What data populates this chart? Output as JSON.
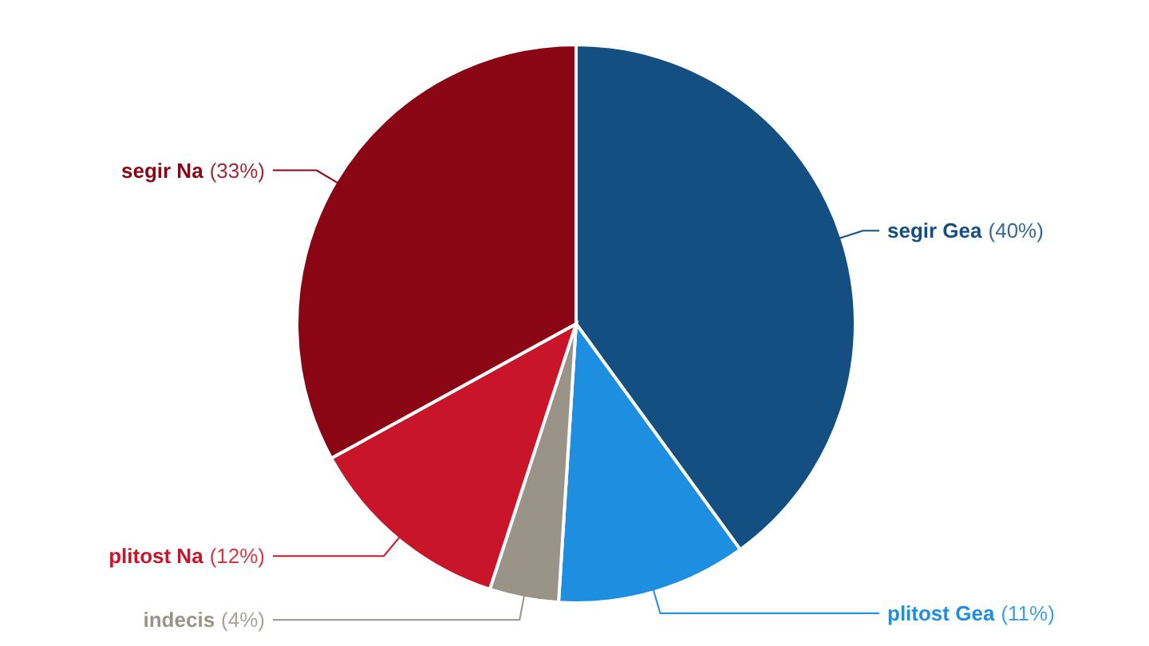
{
  "chart_data": {
    "type": "pie",
    "categories": [
      "segir Gea",
      "plitost Gea",
      "indecis",
      "plitost Na",
      "segir Na"
    ],
    "values": [
      40,
      11,
      4,
      12,
      33
    ],
    "colors": [
      "#134f80",
      "#1e8ee0",
      "#9a9488",
      "#c8152a",
      "#8b0614"
    ],
    "value_labels": [
      "(40%)",
      "(11%)",
      "(4%)",
      "(12%)",
      "(33%)"
    ]
  }
}
